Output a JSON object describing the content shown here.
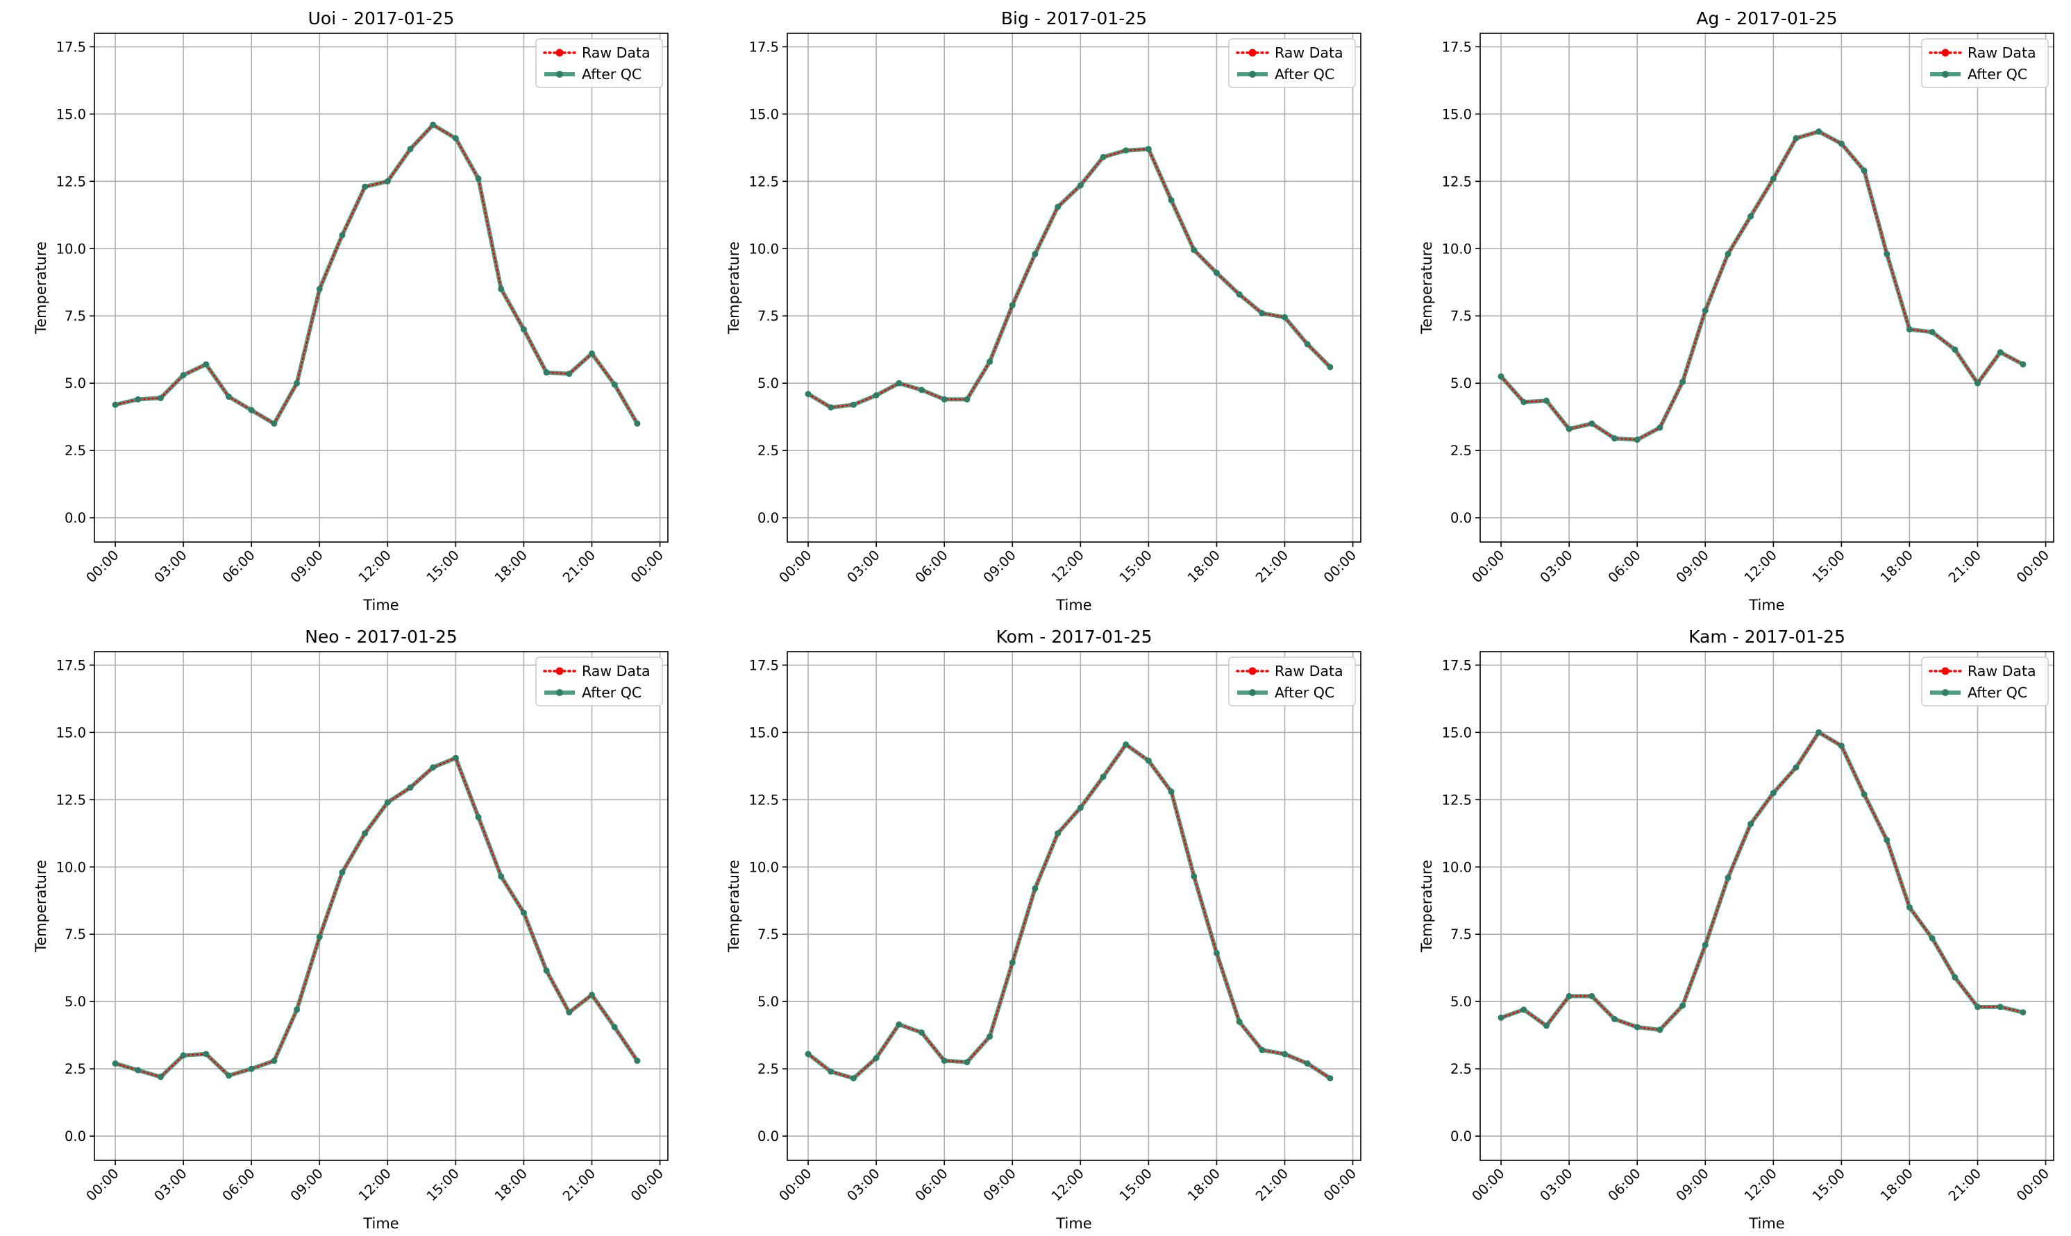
{
  "chart_data": [
    {
      "type": "line",
      "title": "Uoi - 2017-01-25",
      "xlabel": "Time",
      "ylabel": "Temperature",
      "ylim": [
        -0.9,
        18.0
      ],
      "yticks": [
        "0.0",
        "2.5",
        "5.0",
        "7.5",
        "10.0",
        "12.5",
        "15.0",
        "17.5"
      ],
      "xticks": [
        "00:00",
        "03:00",
        "06:00",
        "09:00",
        "12:00",
        "15:00",
        "18:00",
        "21:00",
        "00:00"
      ],
      "x_hours": [
        0,
        1,
        2,
        3,
        4,
        5,
        6,
        7,
        8,
        9,
        10,
        11,
        12,
        13,
        14,
        15,
        16,
        17,
        18,
        19,
        20,
        21,
        22,
        23
      ],
      "grid": true,
      "legend": "top-right",
      "series": [
        {
          "name": "Raw Data",
          "values": [
            4.2,
            4.4,
            4.45,
            5.3,
            5.7,
            4.5,
            4.0,
            3.5,
            5.0,
            8.5,
            10.5,
            12.3,
            12.5,
            13.7,
            14.6,
            14.1,
            12.6,
            8.5,
            7.0,
            5.4,
            5.35,
            6.1,
            4.95,
            3.5
          ]
        },
        {
          "name": "After QC",
          "values": [
            4.2,
            4.4,
            4.45,
            5.3,
            5.7,
            4.5,
            4.0,
            3.5,
            5.0,
            8.5,
            10.5,
            12.3,
            12.5,
            13.7,
            14.6,
            14.1,
            12.6,
            8.5,
            7.0,
            5.4,
            5.35,
            6.1,
            4.95,
            3.5
          ]
        }
      ]
    },
    {
      "type": "line",
      "title": "Big - 2017-01-25",
      "xlabel": "Time",
      "ylabel": "Temperature",
      "ylim": [
        -0.9,
        18.0
      ],
      "yticks": [
        "0.0",
        "2.5",
        "5.0",
        "7.5",
        "10.0",
        "12.5",
        "15.0",
        "17.5"
      ],
      "xticks": [
        "00:00",
        "03:00",
        "06:00",
        "09:00",
        "12:00",
        "15:00",
        "18:00",
        "21:00",
        "00:00"
      ],
      "x_hours": [
        0,
        1,
        2,
        3,
        4,
        5,
        6,
        7,
        8,
        9,
        10,
        11,
        12,
        13,
        14,
        15,
        16,
        17,
        18,
        19,
        20,
        21,
        22,
        23
      ],
      "grid": true,
      "legend": "top-right",
      "series": [
        {
          "name": "Raw Data",
          "values": [
            4.6,
            4.1,
            4.2,
            4.55,
            5.0,
            4.75,
            4.4,
            4.4,
            5.8,
            7.9,
            9.8,
            11.55,
            12.35,
            13.4,
            13.65,
            13.7,
            11.8,
            9.95,
            9.1,
            8.3,
            7.6,
            7.45,
            6.45,
            5.6
          ]
        },
        {
          "name": "After QC",
          "values": [
            4.6,
            4.1,
            4.2,
            4.55,
            5.0,
            4.75,
            4.4,
            4.4,
            5.8,
            7.9,
            9.8,
            11.55,
            12.35,
            13.4,
            13.65,
            13.7,
            11.8,
            9.95,
            9.1,
            8.3,
            7.6,
            7.45,
            6.45,
            5.6
          ]
        }
      ]
    },
    {
      "type": "line",
      "title": "Ag - 2017-01-25",
      "xlabel": "Time",
      "ylabel": "Temperature",
      "ylim": [
        -0.9,
        18.0
      ],
      "yticks": [
        "0.0",
        "2.5",
        "5.0",
        "7.5",
        "10.0",
        "12.5",
        "15.0",
        "17.5"
      ],
      "xticks": [
        "00:00",
        "03:00",
        "06:00",
        "09:00",
        "12:00",
        "15:00",
        "18:00",
        "21:00",
        "00:00"
      ],
      "x_hours": [
        0,
        1,
        2,
        3,
        4,
        5,
        6,
        7,
        8,
        9,
        10,
        11,
        12,
        13,
        14,
        15,
        16,
        17,
        18,
        19,
        20,
        21,
        22,
        23
      ],
      "grid": true,
      "legend": "top-right",
      "series": [
        {
          "name": "Raw Data",
          "values": [
            5.25,
            4.3,
            4.35,
            3.3,
            3.5,
            2.95,
            2.9,
            3.35,
            5.05,
            7.7,
            9.8,
            11.2,
            12.6,
            14.1,
            14.35,
            13.9,
            12.9,
            9.8,
            7.0,
            6.9,
            6.25,
            5.0,
            6.15,
            5.7
          ]
        },
        {
          "name": "After QC",
          "values": [
            5.25,
            4.3,
            4.35,
            3.3,
            3.5,
            2.95,
            2.9,
            3.35,
            5.05,
            7.7,
            9.8,
            11.2,
            12.6,
            14.1,
            14.35,
            13.9,
            12.9,
            9.8,
            7.0,
            6.9,
            6.25,
            5.0,
            6.15,
            5.7
          ]
        }
      ]
    },
    {
      "type": "line",
      "title": "Neo - 2017-01-25",
      "xlabel": "Time",
      "ylabel": "Temperature",
      "ylim": [
        -0.9,
        18.0
      ],
      "yticks": [
        "0.0",
        "2.5",
        "5.0",
        "7.5",
        "10.0",
        "12.5",
        "15.0",
        "17.5"
      ],
      "xticks": [
        "00:00",
        "03:00",
        "06:00",
        "09:00",
        "12:00",
        "15:00",
        "18:00",
        "21:00",
        "00:00"
      ],
      "x_hours": [
        0,
        1,
        2,
        3,
        4,
        5,
        6,
        7,
        8,
        9,
        10,
        11,
        12,
        13,
        14,
        15,
        16,
        17,
        18,
        19,
        20,
        21,
        22,
        23
      ],
      "grid": true,
      "legend": "top-right",
      "series": [
        {
          "name": "Raw Data",
          "values": [
            2.7,
            2.45,
            2.2,
            3.0,
            3.05,
            2.25,
            2.5,
            2.8,
            4.7,
            7.4,
            9.8,
            11.25,
            12.4,
            12.95,
            13.7,
            14.05,
            11.85,
            9.65,
            8.3,
            6.15,
            4.6,
            5.25,
            4.05,
            2.8
          ]
        },
        {
          "name": "After QC",
          "values": [
            2.7,
            2.45,
            2.2,
            3.0,
            3.05,
            2.25,
            2.5,
            2.8,
            4.7,
            7.4,
            9.8,
            11.25,
            12.4,
            12.95,
            13.7,
            14.05,
            11.85,
            9.65,
            8.3,
            6.15,
            4.6,
            5.25,
            4.05,
            2.8
          ]
        }
      ]
    },
    {
      "type": "line",
      "title": "Kom - 2017-01-25",
      "xlabel": "Time",
      "ylabel": "Temperature",
      "ylim": [
        -0.9,
        18.0
      ],
      "yticks": [
        "0.0",
        "2.5",
        "5.0",
        "7.5",
        "10.0",
        "12.5",
        "15.0",
        "17.5"
      ],
      "xticks": [
        "00:00",
        "03:00",
        "06:00",
        "09:00",
        "12:00",
        "15:00",
        "18:00",
        "21:00",
        "00:00"
      ],
      "x_hours": [
        0,
        1,
        2,
        3,
        4,
        5,
        6,
        7,
        8,
        9,
        10,
        11,
        12,
        13,
        14,
        15,
        16,
        17,
        18,
        19,
        20,
        21,
        22,
        23
      ],
      "grid": true,
      "legend": "top-right",
      "series": [
        {
          "name": "Raw Data",
          "values": [
            3.05,
            2.4,
            2.15,
            2.9,
            4.15,
            3.85,
            2.8,
            2.75,
            3.7,
            6.45,
            9.2,
            11.25,
            12.2,
            13.35,
            14.55,
            13.95,
            12.8,
            9.65,
            6.8,
            4.25,
            3.2,
            3.05,
            2.7,
            2.15
          ]
        },
        {
          "name": "After QC",
          "values": [
            3.05,
            2.4,
            2.15,
            2.9,
            4.15,
            3.85,
            2.8,
            2.75,
            3.7,
            6.45,
            9.2,
            11.25,
            12.2,
            13.35,
            14.55,
            13.95,
            12.8,
            9.65,
            6.8,
            4.25,
            3.2,
            3.05,
            2.7,
            2.15
          ]
        }
      ]
    },
    {
      "type": "line",
      "title": "Kam - 2017-01-25",
      "xlabel": "Time",
      "ylabel": "Temperature",
      "ylim": [
        -0.9,
        18.0
      ],
      "yticks": [
        "0.0",
        "2.5",
        "5.0",
        "7.5",
        "10.0",
        "12.5",
        "15.0",
        "17.5"
      ],
      "xticks": [
        "00:00",
        "03:00",
        "06:00",
        "09:00",
        "12:00",
        "15:00",
        "18:00",
        "21:00",
        "00:00"
      ],
      "x_hours": [
        0,
        1,
        2,
        3,
        4,
        5,
        6,
        7,
        8,
        9,
        10,
        11,
        12,
        13,
        14,
        15,
        16,
        17,
        18,
        19,
        20,
        21,
        22,
        23
      ],
      "grid": true,
      "legend": "top-right",
      "series": [
        {
          "name": "Raw Data",
          "values": [
            4.4,
            4.7,
            4.1,
            5.2,
            5.2,
            4.35,
            4.05,
            3.95,
            4.85,
            7.1,
            9.6,
            11.6,
            12.75,
            13.7,
            15.0,
            14.5,
            12.7,
            11.0,
            8.5,
            7.35,
            5.9,
            4.8,
            4.8,
            4.6
          ]
        },
        {
          "name": "After QC",
          "values": [
            4.4,
            4.7,
            4.1,
            5.2,
            5.2,
            4.35,
            4.05,
            3.95,
            4.85,
            7.1,
            9.6,
            11.6,
            12.75,
            13.7,
            15.0,
            14.5,
            12.7,
            11.0,
            8.5,
            7.35,
            5.9,
            4.8,
            4.8,
            4.6
          ]
        }
      ]
    }
  ],
  "colors": {
    "raw": "#ff0000",
    "after_qc": "#2e8b6e",
    "grid": "#b0b0b0"
  }
}
